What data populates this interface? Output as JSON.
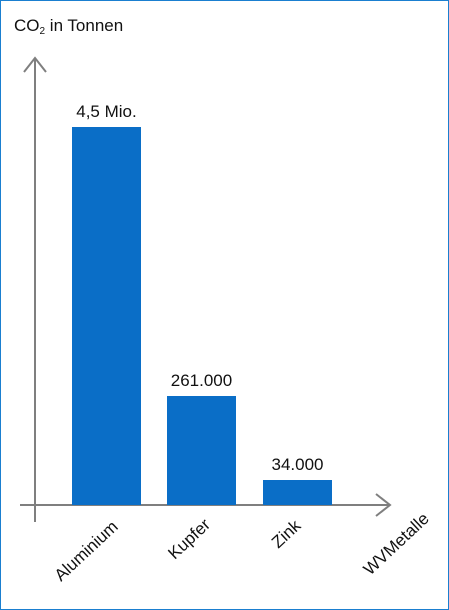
{
  "chart_data": {
    "type": "bar",
    "ylabel_main": "CO",
    "ylabel_sub": "2",
    "ylabel_rest": " in Tonnen",
    "xlabel": "WVMetalle",
    "categories": [
      "Aluminium",
      "Kupfer",
      "Zink"
    ],
    "values": [
      4500000,
      261000,
      34000
    ],
    "data_labels": [
      "4,5 Mio.",
      "261.000",
      "34.000"
    ],
    "bar_color": "#0a6ec7",
    "axis_color": "#7f7f7f",
    "note": ""
  }
}
